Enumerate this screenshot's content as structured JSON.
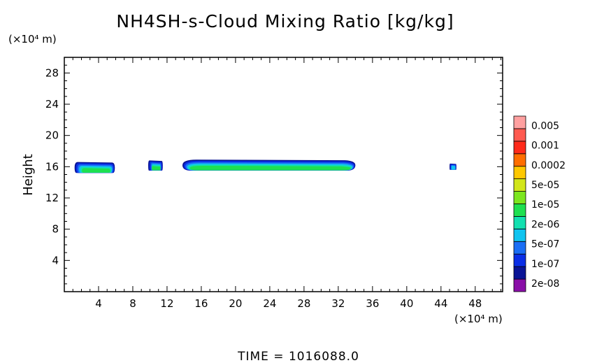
{
  "chart_data": {
    "type": "heatmap",
    "title": "NH4SH-s-Cloud Mixing Ratio [kg/kg]",
    "xlabel": "",
    "ylabel": "Height",
    "x_unit": "(×10⁴ m)",
    "y_unit": "(×10⁴ m)",
    "xlim": [
      0,
      51.2
    ],
    "ylim": [
      0,
      30
    ],
    "x_ticks": [
      "4",
      "8",
      "12",
      "16",
      "20",
      "24",
      "28",
      "32",
      "36",
      "40",
      "44",
      "48"
    ],
    "y_ticks": [
      "4",
      "8",
      "12",
      "16",
      "20",
      "24",
      "28"
    ],
    "colorbar": {
      "levels": [
        "2e-08",
        "1e-07",
        "5e-07",
        "2e-06",
        "1e-05",
        "5e-05",
        "0.0002",
        "0.001",
        "0.005"
      ],
      "colors": [
        "#8a0fa8",
        "#0a1496",
        "#0a2ee6",
        "#1a6ef5",
        "#10c4f0",
        "#12e0b0",
        "#1ee050",
        "#7ce61e",
        "#d2e61a",
        "#ffc800",
        "#ff6e00",
        "#ff2a1a",
        "#ff5a50",
        "#ffa0a0"
      ]
    },
    "cloud_regions": [
      {
        "x": [
          1.2,
          5.9
        ],
        "top": 16.6,
        "bottom": 15.2,
        "peak_level": "1e-05"
      },
      {
        "x": [
          9.8,
          11.5
        ],
        "top": 16.8,
        "bottom": 15.5,
        "peak_level": "1e-05"
      },
      {
        "x": [
          13.8,
          34.0
        ],
        "top": 16.9,
        "bottom": 15.5,
        "peak_level": "1e-05"
      },
      {
        "x": [
          45.0,
          45.8
        ],
        "top": 16.4,
        "bottom": 15.6,
        "peak_level": "5e-07"
      }
    ],
    "footer": "TIME  =  1016088.0"
  }
}
